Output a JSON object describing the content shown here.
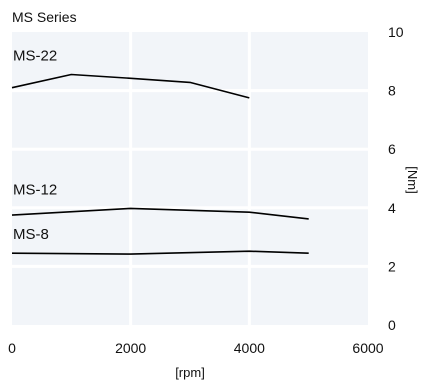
{
  "chart_data": {
    "type": "line",
    "title": "MS Series",
    "xlabel": "[rpm]",
    "ylabel": "[Nm]",
    "xlim": [
      0,
      6000
    ],
    "ylim": [
      0,
      10
    ],
    "x_ticks": [
      0,
      2000,
      4000,
      6000
    ],
    "y_ticks": [
      0,
      2,
      4,
      6,
      8,
      10
    ],
    "y_axis_side": "right",
    "grid": true,
    "background": "#f2f5f9",
    "series": [
      {
        "name": "MS-22",
        "x": [
          0,
          1000,
          2000,
          3000,
          4000
        ],
        "y": [
          8.1,
          8.55,
          8.42,
          8.28,
          7.75
        ]
      },
      {
        "name": "MS-12",
        "x": [
          0,
          2000,
          4000,
          5000
        ],
        "y": [
          3.75,
          3.98,
          3.85,
          3.62
        ]
      },
      {
        "name": "MS-8",
        "x": [
          0,
          2000,
          4000,
          5000
        ],
        "y": [
          2.45,
          2.42,
          2.52,
          2.45
        ]
      }
    ]
  }
}
